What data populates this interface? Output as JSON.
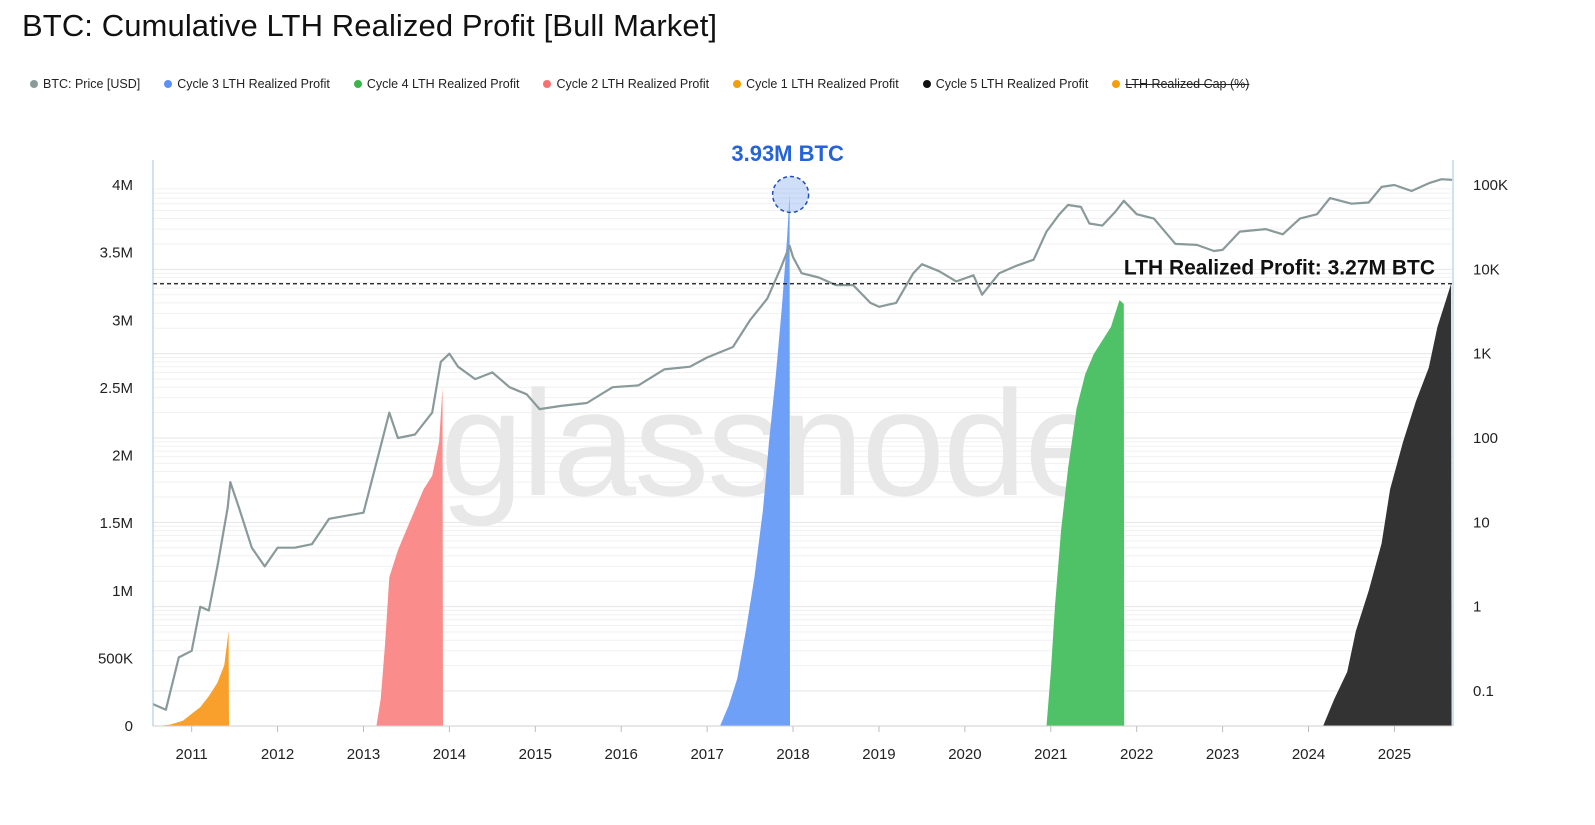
{
  "title": "BTC: Cumulative LTH Realized Profit [Bull Market]",
  "legend": [
    {
      "label": "BTC: Price [USD]",
      "color": "#8a9a9a",
      "struck": false
    },
    {
      "label": "Cycle 3 LTH Realized Profit",
      "color": "#5b8ff9",
      "struck": false
    },
    {
      "label": "Cycle 4 LTH Realized Profit",
      "color": "#3cb44b",
      "struck": false
    },
    {
      "label": "Cycle 2 LTH Realized Profit",
      "color": "#f87171",
      "struck": false
    },
    {
      "label": "Cycle 1 LTH Realized Profit",
      "color": "#f59e0b",
      "struck": false
    },
    {
      "label": "Cycle 5 LTH Realized Profit",
      "color": "#111111",
      "struck": false
    },
    {
      "label": "LTH Realized Cap (%)",
      "color": "#f59e0b",
      "struck": true
    }
  ],
  "watermark": "glassnode",
  "chart_data": {
    "type": "area",
    "title": "BTC: Cumulative LTH Realized Profit [Bull Market]",
    "x_range": [
      2010.55,
      2025.67
    ],
    "x_ticks": [
      "2011",
      "2012",
      "2013",
      "2014",
      "2015",
      "2016",
      "2017",
      "2018",
      "2019",
      "2020",
      "2021",
      "2022",
      "2023",
      "2024",
      "2025"
    ],
    "y_left": {
      "range": [
        0,
        4000000
      ],
      "ticks": [
        "0",
        "500K",
        "1M",
        "1.5M",
        "2M",
        "2.5M",
        "3M",
        "3.5M",
        "4M"
      ],
      "tick_values": [
        0,
        500000,
        1000000,
        1500000,
        2000000,
        2500000,
        3000000,
        3500000,
        4000000
      ]
    },
    "y_right": {
      "scale": "log",
      "range": [
        0.05,
        100000
      ],
      "ticks": [
        "0.1",
        "1",
        "10",
        "100",
        "1K",
        "10K",
        "100K"
      ],
      "tick_values": [
        0.1,
        1,
        10,
        100,
        1000,
        10000,
        100000
      ]
    },
    "reference_line": {
      "value": 3270000,
      "label": "LTH Realized Profit: 3.27M BTC"
    },
    "peak_annotation": {
      "x": 2017.96,
      "value": 3930000,
      "label": "3.93M BTC"
    },
    "series": [
      {
        "name": "Cycle 1 LTH Realized Profit",
        "color": "#f9a02c",
        "points": [
          [
            2010.6,
            0
          ],
          [
            2010.75,
            10000
          ],
          [
            2010.9,
            40000
          ],
          [
            2011.0,
            90000
          ],
          [
            2011.1,
            140000
          ],
          [
            2011.2,
            220000
          ],
          [
            2011.3,
            320000
          ],
          [
            2011.38,
            450000
          ],
          [
            2011.42,
            650000
          ],
          [
            2011.43,
            700000
          ],
          [
            2011.435,
            0
          ]
        ]
      },
      {
        "name": "Cycle 2 LTH Realized Profit",
        "color": "#fb8c8c",
        "points": [
          [
            2013.15,
            0
          ],
          [
            2013.2,
            200000
          ],
          [
            2013.25,
            600000
          ],
          [
            2013.3,
            1100000
          ],
          [
            2013.4,
            1300000
          ],
          [
            2013.5,
            1450000
          ],
          [
            2013.6,
            1600000
          ],
          [
            2013.7,
            1750000
          ],
          [
            2013.8,
            1850000
          ],
          [
            2013.88,
            2100000
          ],
          [
            2013.92,
            2500000
          ],
          [
            2013.925,
            0
          ]
        ]
      },
      {
        "name": "Cycle 3 LTH Realized Profit",
        "color": "#6fa0f8",
        "points": [
          [
            2017.15,
            0
          ],
          [
            2017.25,
            150000
          ],
          [
            2017.35,
            350000
          ],
          [
            2017.45,
            700000
          ],
          [
            2017.55,
            1100000
          ],
          [
            2017.65,
            1600000
          ],
          [
            2017.72,
            2100000
          ],
          [
            2017.8,
            2600000
          ],
          [
            2017.87,
            3100000
          ],
          [
            2017.93,
            3600000
          ],
          [
            2017.96,
            3930000
          ],
          [
            2017.965,
            0
          ]
        ]
      },
      {
        "name": "Cycle 4 LTH Realized Profit",
        "color": "#4fc166",
        "points": [
          [
            2020.95,
            0
          ],
          [
            2021.0,
            400000
          ],
          [
            2021.05,
            900000
          ],
          [
            2021.12,
            1450000
          ],
          [
            2021.2,
            1900000
          ],
          [
            2021.3,
            2350000
          ],
          [
            2021.4,
            2600000
          ],
          [
            2021.5,
            2750000
          ],
          [
            2021.6,
            2850000
          ],
          [
            2021.7,
            2950000
          ],
          [
            2021.8,
            3150000
          ],
          [
            2021.85,
            3120000
          ],
          [
            2021.855,
            0
          ]
        ]
      },
      {
        "name": "Cycle 5 LTH Realized Profit",
        "color": "#333333",
        "points": [
          [
            2024.17,
            0
          ],
          [
            2024.3,
            200000
          ],
          [
            2024.45,
            400000
          ],
          [
            2024.55,
            700000
          ],
          [
            2024.7,
            1000000
          ],
          [
            2024.85,
            1350000
          ],
          [
            2024.95,
            1750000
          ],
          [
            2025.1,
            2100000
          ],
          [
            2025.25,
            2400000
          ],
          [
            2025.4,
            2650000
          ],
          [
            2025.5,
            2950000
          ],
          [
            2025.6,
            3150000
          ],
          [
            2025.66,
            3270000
          ],
          [
            2025.665,
            0
          ]
        ]
      },
      {
        "name": "BTC: Price [USD]",
        "color": "#8a9a9a",
        "axis": "right-log",
        "points": [
          [
            2010.55,
            0.07
          ],
          [
            2010.7,
            0.06
          ],
          [
            2010.85,
            0.25
          ],
          [
            2011.0,
            0.3
          ],
          [
            2011.1,
            1
          ],
          [
            2011.2,
            0.9
          ],
          [
            2011.3,
            3
          ],
          [
            2011.42,
            15
          ],
          [
            2011.45,
            30
          ],
          [
            2011.55,
            15
          ],
          [
            2011.7,
            5
          ],
          [
            2011.85,
            3
          ],
          [
            2012.0,
            5
          ],
          [
            2012.2,
            5
          ],
          [
            2012.4,
            5.5
          ],
          [
            2012.6,
            11
          ],
          [
            2012.8,
            12
          ],
          [
            2013.0,
            13
          ],
          [
            2013.2,
            80
          ],
          [
            2013.3,
            200
          ],
          [
            2013.4,
            100
          ],
          [
            2013.6,
            110
          ],
          [
            2013.8,
            200
          ],
          [
            2013.9,
            800
          ],
          [
            2014.0,
            1000
          ],
          [
            2014.1,
            700
          ],
          [
            2014.3,
            500
          ],
          [
            2014.5,
            600
          ],
          [
            2014.7,
            400
          ],
          [
            2014.9,
            330
          ],
          [
            2015.05,
            220
          ],
          [
            2015.3,
            240
          ],
          [
            2015.6,
            260
          ],
          [
            2015.9,
            400
          ],
          [
            2016.2,
            420
          ],
          [
            2016.5,
            650
          ],
          [
            2016.8,
            700
          ],
          [
            2017.0,
            900
          ],
          [
            2017.3,
            1200
          ],
          [
            2017.5,
            2500
          ],
          [
            2017.7,
            4500
          ],
          [
            2017.85,
            10000
          ],
          [
            2017.96,
            19000
          ],
          [
            2018.0,
            14000
          ],
          [
            2018.1,
            9000
          ],
          [
            2018.3,
            8000
          ],
          [
            2018.5,
            6500
          ],
          [
            2018.7,
            6500
          ],
          [
            2018.9,
            4000
          ],
          [
            2019.0,
            3600
          ],
          [
            2019.2,
            4000
          ],
          [
            2019.4,
            9000
          ],
          [
            2019.5,
            11500
          ],
          [
            2019.7,
            9500
          ],
          [
            2019.9,
            7200
          ],
          [
            2020.1,
            8500
          ],
          [
            2020.2,
            5000
          ],
          [
            2020.4,
            9000
          ],
          [
            2020.6,
            11000
          ],
          [
            2020.8,
            13000
          ],
          [
            2020.95,
            28000
          ],
          [
            2021.1,
            45000
          ],
          [
            2021.2,
            58000
          ],
          [
            2021.35,
            55000
          ],
          [
            2021.45,
            35000
          ],
          [
            2021.6,
            33000
          ],
          [
            2021.75,
            48000
          ],
          [
            2021.85,
            65000
          ],
          [
            2022.0,
            45000
          ],
          [
            2022.2,
            40000
          ],
          [
            2022.45,
            20000
          ],
          [
            2022.7,
            19500
          ],
          [
            2022.9,
            16500
          ],
          [
            2023.0,
            17000
          ],
          [
            2023.2,
            28000
          ],
          [
            2023.5,
            30000
          ],
          [
            2023.7,
            26000
          ],
          [
            2023.9,
            40000
          ],
          [
            2024.1,
            45000
          ],
          [
            2024.25,
            70000
          ],
          [
            2024.5,
            60000
          ],
          [
            2024.7,
            62000
          ],
          [
            2024.85,
            95000
          ],
          [
            2025.0,
            100000
          ],
          [
            2025.2,
            85000
          ],
          [
            2025.4,
            105000
          ],
          [
            2025.55,
            117000
          ],
          [
            2025.67,
            115000
          ]
        ]
      }
    ]
  }
}
